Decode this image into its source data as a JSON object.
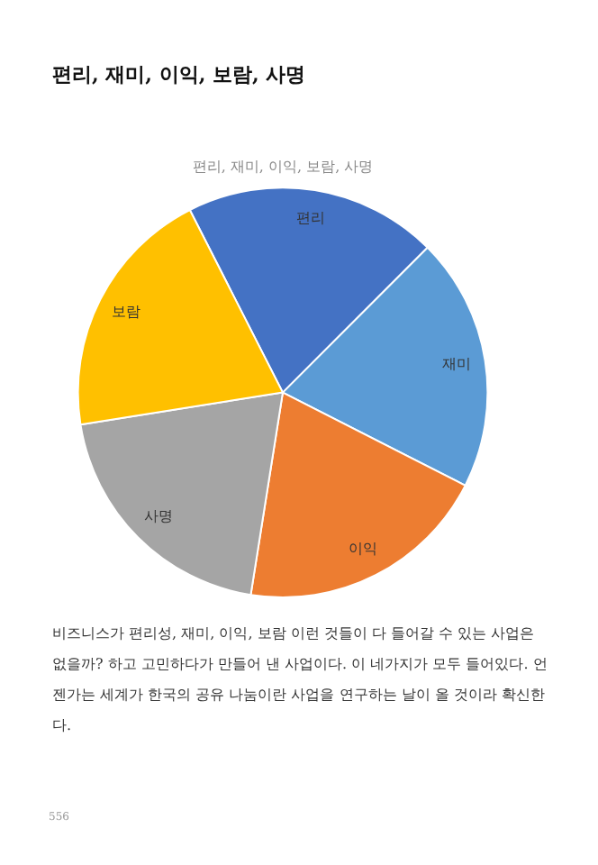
{
  "chart_data": {
    "type": "pie",
    "title": "편리, 재미, 이익, 보람, 사명",
    "subtitle": "편리, 재미, 이익, 보람, 사명",
    "categories": [
      "편리",
      "재미",
      "이익",
      "사명",
      "보람"
    ],
    "values": [
      20,
      20,
      20,
      20,
      20
    ],
    "colors": [
      "#4472c4",
      "#5b9bd5",
      "#ed7d31",
      "#a5a5a5",
      "#ffc000"
    ],
    "legend": false,
    "annotations": [
      "비즈니스가 편리성, 재미, 이익, 보람 이런 것들이 다 들어갈 수 있는 사업은 없을까? 하고 고민하다가 만들어 낸 사업이다. 이 네가지가 모두 들어있다. 언젠가는 세계가 한국의 공유 나눔이란 사업을 연구하는 날이 올 것이라 확신한다.",
      "556"
    ]
  }
}
